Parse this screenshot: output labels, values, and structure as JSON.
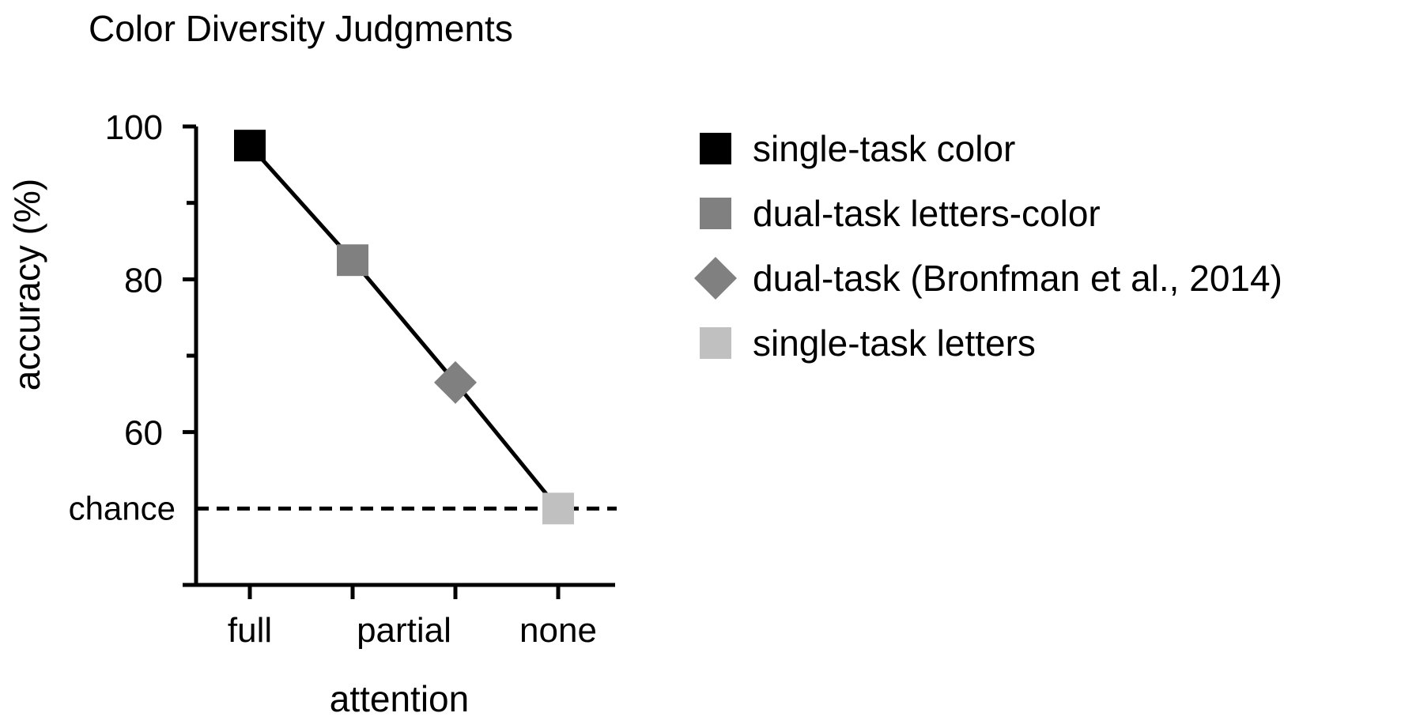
{
  "chart_data": {
    "type": "line",
    "title": "Color Diversity Judgments",
    "xlabel": "attention",
    "ylabel": "accuracy (%)",
    "categories": [
      "full",
      "partial",
      "none"
    ],
    "x_positions": [
      1,
      2,
      3,
      4
    ],
    "xlim": [
      0.5,
      4.5
    ],
    "ylim": [
      40,
      100
    ],
    "yticks_major": [
      60,
      80,
      100
    ],
    "yticks_minor": [
      70,
      90
    ],
    "chance_label": "chance",
    "chance_level": 50,
    "points": [
      {
        "label": "single-task color",
        "x": 1,
        "y": 97.5,
        "marker": "square",
        "color": "#000000"
      },
      {
        "label": "dual-task letters-color",
        "x": 2,
        "y": 82.5,
        "marker": "square",
        "color": "#808080"
      },
      {
        "label": "dual-task (Bronfman et al., 2014)",
        "x": 3,
        "y": 66.5,
        "marker": "diamond",
        "color": "#808080"
      },
      {
        "label": "single-task letters",
        "x": 4,
        "y": 50,
        "marker": "square",
        "color": "#c0c0c0"
      }
    ],
    "category_tick_x": [
      1,
      2,
      3,
      4
    ],
    "category_label_x": [
      1,
      2.5,
      4
    ],
    "legend": "right",
    "grid": false
  }
}
